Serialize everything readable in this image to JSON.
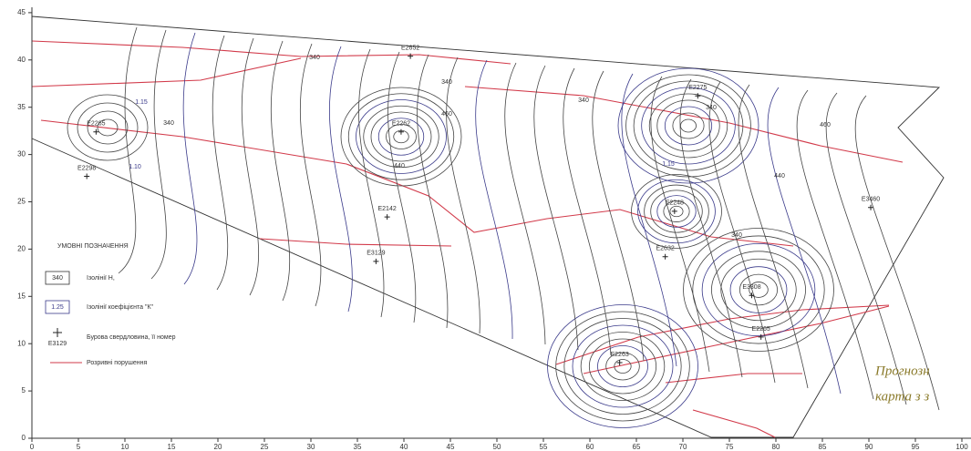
{
  "axes": {
    "xticks": [
      0,
      5,
      10,
      15,
      20,
      25,
      30,
      35,
      40,
      45,
      50,
      55,
      60,
      65,
      70,
      75,
      80,
      85,
      90,
      95,
      100
    ],
    "yticks": [
      0,
      5,
      10,
      15,
      20,
      25,
      30,
      35,
      40,
      45
    ]
  },
  "wells": [
    {
      "name": "E2652",
      "x": 40.7,
      "y": 40.4
    },
    {
      "name": "E2275",
      "x": 71.6,
      "y": 36.2
    },
    {
      "name": "E2265",
      "x": 6.9,
      "y": 32.4
    },
    {
      "name": "E2298",
      "x": 5.9,
      "y": 27.7
    },
    {
      "name": "E2262",
      "x": 39.7,
      "y": 32.4
    },
    {
      "name": "E2142",
      "x": 38.2,
      "y": 23.4
    },
    {
      "name": "E3129",
      "x": 37.0,
      "y": 18.7
    },
    {
      "name": "E2248",
      "x": 69.1,
      "y": 24.0
    },
    {
      "name": "E3460",
      "x": 90.2,
      "y": 24.4
    },
    {
      "name": "E2632",
      "x": 68.1,
      "y": 19.2
    },
    {
      "name": "E3308",
      "x": 77.4,
      "y": 15.1
    },
    {
      "name": "E2265",
      "x": 78.4,
      "y": 10.7
    },
    {
      "name": "E2263",
      "x": 63.2,
      "y": 8.0
    }
  ],
  "contour_labels": [
    "340",
    "340",
    "340",
    "340",
    "340",
    "440",
    "460",
    "460",
    "1.15",
    "1.10",
    "1.15",
    "340",
    "440"
  ],
  "legend": {
    "title": "УМОВНІ ПОЗНАЧЕННЯ",
    "items": [
      {
        "sample": "340",
        "text": "Ізолінії H,"
      },
      {
        "sample": "1.25",
        "text": "Ізолінії коефіцієнта \"К\""
      },
      {
        "sample": "E3129",
        "text": "Бурова свердловина, її номер"
      },
      {
        "text": "Розривні порушення"
      }
    ]
  },
  "caption": [
    "Прогнозн",
    "карта з з"
  ]
}
